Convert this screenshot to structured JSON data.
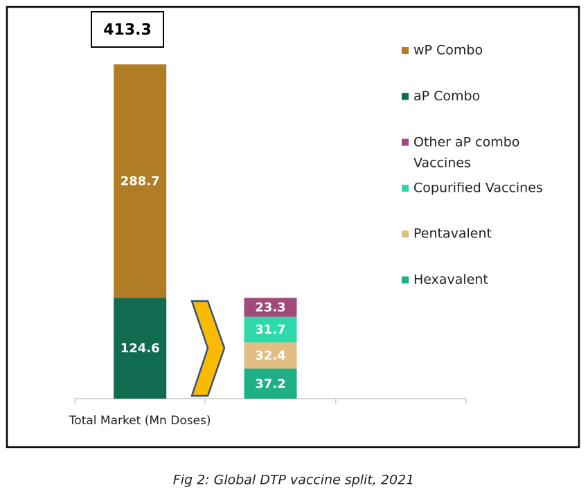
{
  "chart_data": {
    "type": "stacked-bar",
    "categories": [
      "Total Market (Mn Doses)",
      null,
      null
    ],
    "series": [
      {
        "name": "wP Combo",
        "color": "#b07c24",
        "values": [
          288.7,
          null,
          null
        ]
      },
      {
        "name": "aP Combo",
        "color": "#116b50",
        "values": [
          124.6,
          null,
          null
        ]
      },
      {
        "name": "Other aP combo Vaccines",
        "color": "#a0497a",
        "values": [
          null,
          23.3,
          null
        ]
      },
      {
        "name": "Copurified Vaccines",
        "color": "#2ed9a9",
        "values": [
          null,
          31.7,
          null
        ]
      },
      {
        "name": "Pentavalent",
        "color": "#e2be84",
        "values": [
          null,
          32.4,
          null
        ]
      },
      {
        "name": "Hexavalent",
        "color": "#1db086",
        "values": [
          null,
          37.2,
          null
        ]
      }
    ],
    "totals": [
      413.3,
      null,
      null
    ],
    "legend": "right",
    "caption": "Fig 2: Global DTP vaccine split, 2021"
  }
}
